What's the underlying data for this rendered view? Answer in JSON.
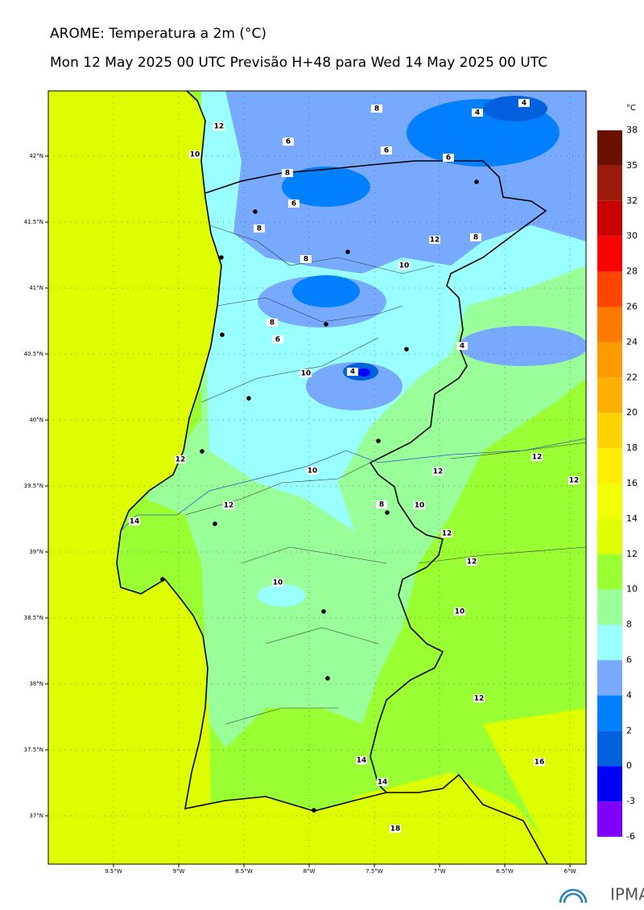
{
  "header": {
    "title": "AROME: Temperatura a 2m (°C)",
    "subtitle": "Mon 12 May 2025 00 UTC Previsão H+48 para Wed 14 May 2025 00 UTC"
  },
  "map": {
    "lonlim": [
      -10,
      -5.877
    ],
    "latlim": [
      36.634,
      42.494
    ],
    "lonticks": [
      {
        "value": -9.5,
        "label": "9.5°W"
      },
      {
        "value": -9,
        "label": "9°W"
      },
      {
        "value": -8.5,
        "label": "8.5°W"
      },
      {
        "value": -8,
        "label": "8°W"
      },
      {
        "value": -7.5,
        "label": "7.5°W"
      },
      {
        "value": -7,
        "label": "7°W"
      },
      {
        "value": -6.5,
        "label": "6.5°W"
      },
      {
        "value": -6,
        "label": "6°W"
      }
    ],
    "latticks": [
      {
        "value": 42,
        "label": "42°N"
      },
      {
        "value": 41.5,
        "label": "41.5°N"
      },
      {
        "value": 41,
        "label": "41°N"
      },
      {
        "value": 40.5,
        "label": "40.5°N"
      },
      {
        "value": 40,
        "label": "40°N"
      },
      {
        "value": 39.5,
        "label": "39.5°N"
      },
      {
        "value": 39,
        "label": "39°N"
      },
      {
        "value": 38.5,
        "label": "38.5°N"
      },
      {
        "value": 38,
        "label": "38°N"
      },
      {
        "value": 37.5,
        "label": "37.5°N"
      },
      {
        "value": 37,
        "label": "37°N"
      }
    ],
    "contour_labels": [
      8,
      4,
      4,
      12,
      10,
      6,
      6,
      6,
      8,
      6,
      8,
      12,
      8,
      8,
      10,
      8,
      6,
      4,
      4,
      10,
      12,
      10,
      12,
      12,
      12,
      8,
      10,
      12,
      14,
      12,
      12,
      10,
      10,
      12,
      14,
      16,
      14,
      18
    ]
  },
  "colorbar": {
    "unit": "°C",
    "ticks": [
      38,
      35,
      32,
      30,
      28,
      26,
      24,
      22,
      20,
      18,
      16,
      14,
      12,
      10,
      8,
      6,
      4,
      2,
      0,
      -3,
      -6
    ],
    "colors": [
      "#6b0f00",
      "#9b1a0a",
      "#c80000",
      "#ff0000",
      "#ff4500",
      "#ff7a00",
      "#ff9a00",
      "#ffb000",
      "#ffd200",
      "#ffee00",
      "#f2ff00",
      "#ddff00",
      "#99ff33",
      "#99ff99",
      "#99ffff",
      "#77aaff",
      "#0080ff",
      "#0060dd",
      "#0000ff",
      "#7f00ff",
      "#dd00ff"
    ]
  },
  "logo": "IPMA"
}
